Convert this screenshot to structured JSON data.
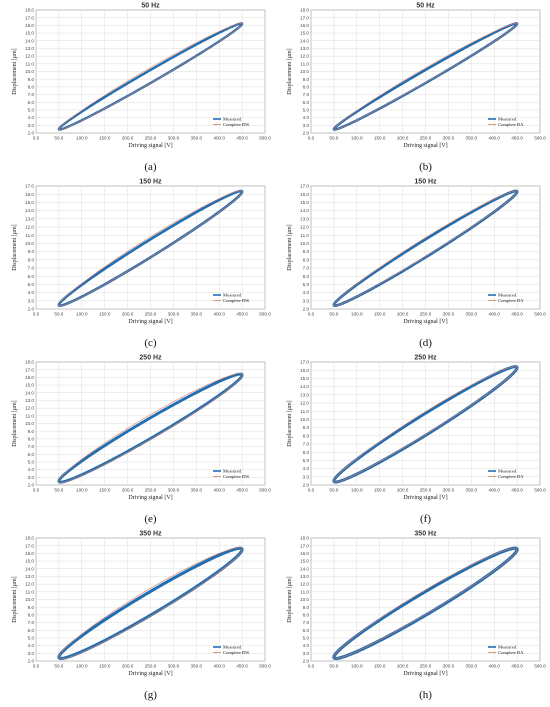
{
  "chart_data": [
    {
      "id": "a",
      "type": "line",
      "title": "50 Hz",
      "xlabel": "Driving signal [V]",
      "ylabel": "Displacement [μm]",
      "xlim": [
        0,
        500
      ],
      "ylim": [
        2,
        18
      ],
      "grid": true,
      "legend": "bottom-right",
      "panel_label": "(a)",
      "series": [
        {
          "name": "Measured",
          "color": "#1f6fb4"
        },
        {
          "name": "Complete BW",
          "color": "#e8795a"
        }
      ],
      "loop": {
        "v_min": 50,
        "v_max": 450,
        "d_min": 2.5,
        "d_max": 16.2,
        "width_measured": 0.85,
        "width_model": 1.0
      }
    },
    {
      "id": "b",
      "type": "line",
      "title": "50 Hz",
      "xlabel": "Driving signal [V]",
      "ylabel": "Displacement [μm]",
      "xlim": [
        0,
        500
      ],
      "ylim": [
        2,
        18
      ],
      "grid": true,
      "legend": "bottom-right",
      "panel_label": "(b)",
      "series": [
        {
          "name": "Measured",
          "color": "#1f6fb4"
        },
        {
          "name": "Complete BA",
          "color": "#e8795a"
        }
      ],
      "loop": {
        "v_min": 50,
        "v_max": 450,
        "d_min": 2.5,
        "d_max": 16.2,
        "width_measured": 0.85,
        "width_model": 0.95
      }
    },
    {
      "id": "c",
      "type": "line",
      "title": "150 Hz",
      "xlabel": "Driving signal [V]",
      "ylabel": "Displacement [μm]",
      "xlim": [
        0,
        500
      ],
      "ylim": [
        2,
        17
      ],
      "grid": true,
      "legend": "bottom-right",
      "panel_label": "(c)",
      "series": [
        {
          "name": "Measured",
          "color": "#1f6fb4"
        },
        {
          "name": "Complete BW",
          "color": "#e8795a"
        }
      ],
      "loop": {
        "v_min": 50,
        "v_max": 450,
        "d_min": 2.5,
        "d_max": 16.3,
        "width_measured": 1.1,
        "width_model": 1.25
      }
    },
    {
      "id": "d",
      "type": "line",
      "title": "150 Hz",
      "xlabel": "Driving signal [V]",
      "ylabel": "Displacement [μm]",
      "xlim": [
        0,
        500
      ],
      "ylim": [
        2,
        17
      ],
      "grid": true,
      "legend": "bottom-right",
      "panel_label": "(d)",
      "series": [
        {
          "name": "Measured",
          "color": "#1f6fb4"
        },
        {
          "name": "Complete BA",
          "color": "#e8795a"
        }
      ],
      "loop": {
        "v_min": 50,
        "v_max": 450,
        "d_min": 2.5,
        "d_max": 16.3,
        "width_measured": 1.1,
        "width_model": 1.15
      }
    },
    {
      "id": "e",
      "type": "line",
      "title": "250 Hz",
      "xlabel": "Driving signal [V]",
      "ylabel": "Displacement [μm]",
      "xlim": [
        0,
        500
      ],
      "ylim": [
        2,
        18
      ],
      "grid": true,
      "legend": "bottom-right",
      "panel_label": "(e)",
      "series": [
        {
          "name": "Measured",
          "color": "#1f6fb4"
        },
        {
          "name": "Complete BW",
          "color": "#e8795a"
        }
      ],
      "loop": {
        "v_min": 50,
        "v_max": 450,
        "d_min": 2.5,
        "d_max": 16.3,
        "width_measured": 1.35,
        "width_model": 1.6
      }
    },
    {
      "id": "f",
      "type": "line",
      "title": "250 Hz",
      "xlabel": "Driving signal [V]",
      "ylabel": "Displacement [μm]",
      "xlim": [
        0,
        500
      ],
      "ylim": [
        2,
        17
      ],
      "grid": true,
      "legend": "bottom-right",
      "panel_label": "(f)",
      "series": [
        {
          "name": "Measured",
          "color": "#1f6fb4"
        },
        {
          "name": "Complete BA",
          "color": "#e8795a"
        }
      ],
      "loop": {
        "v_min": 50,
        "v_max": 450,
        "d_min": 2.5,
        "d_max": 16.3,
        "width_measured": 1.35,
        "width_model": 1.4
      }
    },
    {
      "id": "g",
      "type": "line",
      "title": "350 Hz",
      "xlabel": "Driving signal [V]",
      "ylabel": "Displacement [μm]",
      "xlim": [
        0,
        500
      ],
      "ylim": [
        2,
        18
      ],
      "grid": true,
      "legend": "bottom-right",
      "panel_label": "(g)",
      "series": [
        {
          "name": "Measured",
          "color": "#1f6fb4"
        },
        {
          "name": "Complete BW",
          "color": "#e8795a"
        }
      ],
      "loop": {
        "v_min": 50,
        "v_max": 450,
        "d_min": 2.5,
        "d_max": 16.5,
        "width_measured": 1.55,
        "width_model": 1.8
      }
    },
    {
      "id": "h",
      "type": "line",
      "title": "350 Hz",
      "xlabel": "Driving signal [V]",
      "ylabel": "Displacement [μm]",
      "xlim": [
        0,
        500
      ],
      "ylim": [
        2,
        18
      ],
      "grid": true,
      "legend": "bottom-right",
      "panel_label": "(h)",
      "series": [
        {
          "name": "Measured",
          "color": "#1f6fb4"
        },
        {
          "name": "Complete BA",
          "color": "#e8795a"
        }
      ],
      "loop": {
        "v_min": 50,
        "v_max": 450,
        "d_min": 2.5,
        "d_max": 16.5,
        "width_measured": 1.55,
        "width_model": 1.6
      }
    }
  ]
}
